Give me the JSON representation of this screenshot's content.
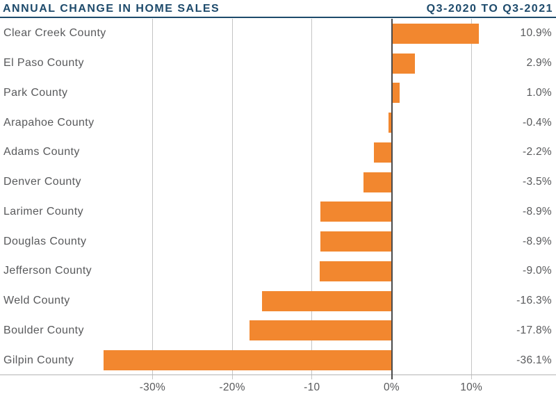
{
  "header": {
    "title_left": "ANNUAL CHANGE IN HOME SALES",
    "title_right": "Q3-2020 TO Q3-2021"
  },
  "colors": {
    "navy": "#1D4A6B",
    "bar_orange": "#F2872F",
    "text_gray": "#58595B",
    "gridline_gray": "#C4C4C4",
    "zero_line_gray": "#4A4A4A",
    "axis_line_gray": "#B4B4B4",
    "background": "#FFFFFF"
  },
  "chart_data": {
    "type": "bar",
    "orientation": "horizontal",
    "title": "ANNUAL CHANGE IN HOME SALES",
    "subtitle": "Q3-2020 TO Q3-2021",
    "unit": "percent",
    "categories": [
      "Clear Creek County",
      "El Paso County",
      "Park County",
      "Arapahoe County",
      "Adams County",
      "Denver County",
      "Larimer County",
      "Douglas County",
      "Jefferson County",
      "Weld County",
      "Boulder County",
      "Gilpin County"
    ],
    "values": [
      10.9,
      2.9,
      1.0,
      -0.4,
      -2.2,
      -3.5,
      -8.9,
      -8.9,
      -9.0,
      -16.3,
      -17.8,
      -36.1
    ],
    "value_labels": [
      "10.9%",
      "2.9%",
      "1.0%",
      "-0.4%",
      "-2.2%",
      "-3.5%",
      "-8.9%",
      "-8.9%",
      "-9.0%",
      "-16.3%",
      "-17.8%",
      "-36.1%"
    ],
    "x_axis": {
      "ticks": [
        -30,
        -20,
        -10,
        0,
        10
      ],
      "tick_labels": [
        "-30%",
        "-20%",
        "-10",
        "0%",
        "10%"
      ],
      "visible_range": [
        -49,
        20.6
      ]
    },
    "grid": true,
    "legend": false,
    "bar_color": "#F2872F"
  }
}
